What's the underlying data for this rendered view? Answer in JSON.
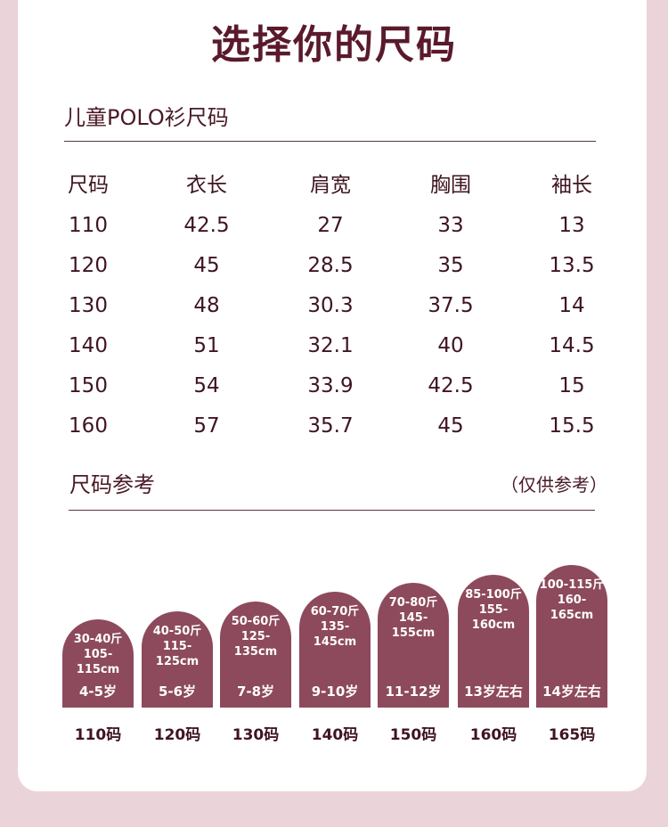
{
  "title": "选择你的尺码",
  "table": {
    "title": "儿童POLO衫尺码",
    "headers": [
      "尺码",
      "衣长",
      "肩宽",
      "胸围",
      "袖长"
    ],
    "rows": [
      [
        "110",
        "42.5",
        "27",
        "33",
        "13"
      ],
      [
        "120",
        "45",
        "28.5",
        "35",
        "13.5"
      ],
      [
        "130",
        "48",
        "30.3",
        "37.5",
        "14"
      ],
      [
        "140",
        "51",
        "32.1",
        "40",
        "14.5"
      ],
      [
        "150",
        "54",
        "33.9",
        "42.5",
        "15"
      ],
      [
        "160",
        "57",
        "35.7",
        "45",
        "15.5"
      ]
    ]
  },
  "reference": {
    "title": "尺码参考",
    "note": "（仅供参考）",
    "items": [
      {
        "weight": "30-40斤",
        "height": "105-115cm",
        "age": "4-5岁",
        "size": "110码"
      },
      {
        "weight": "40-50斤",
        "height": "115-125cm",
        "age": "5-6岁",
        "size": "120码"
      },
      {
        "weight": "50-60斤",
        "height": "125-135cm",
        "age": "7-8岁",
        "size": "130码"
      },
      {
        "weight": "60-70斤",
        "height": "135-145cm",
        "age": "9-10岁",
        "size": "140码"
      },
      {
        "weight": "70-80斤",
        "height": "145-155cm",
        "age": "11-12岁",
        "size": "150码"
      },
      {
        "weight": "85-100斤",
        "height": "155-160cm",
        "age": "13岁左右",
        "size": "160码"
      },
      {
        "weight": "100-115斤",
        "height": "160-165cm",
        "age": "14岁左右",
        "size": "165码"
      }
    ]
  },
  "colors": {
    "background": "#ead3d9",
    "accent": "#8d4a5c",
    "text": "#5a1a2c"
  }
}
